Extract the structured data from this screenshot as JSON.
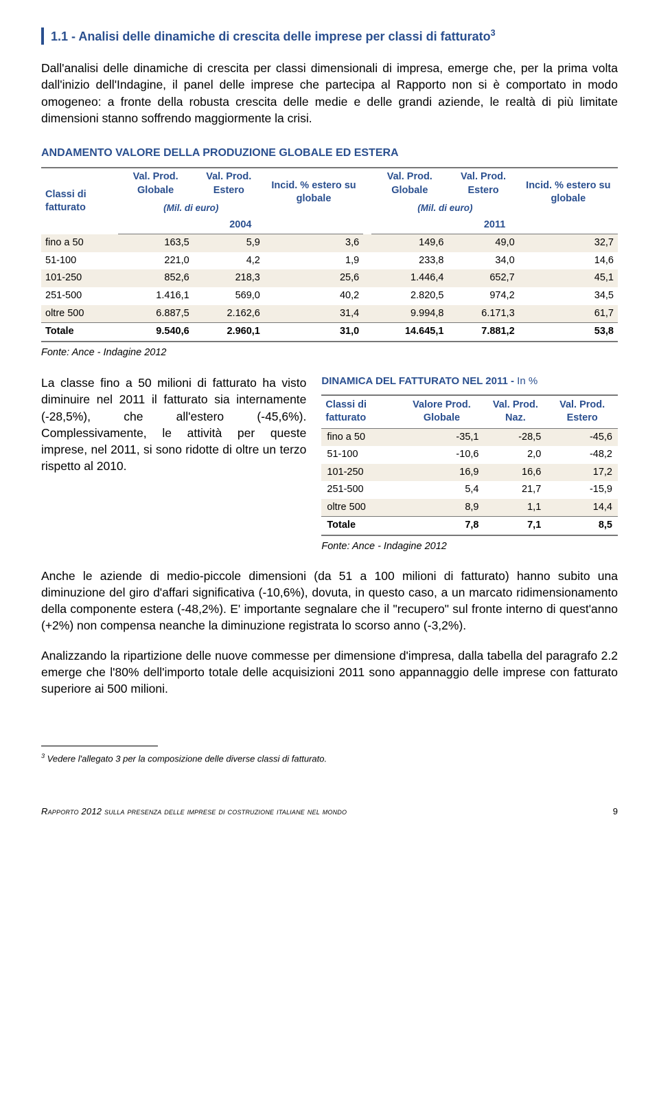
{
  "heading": "1.1 - Analisi delle dinamiche di crescita delle imprese per classi di fatturato",
  "heading_sup": "3",
  "para1": "Dall'analisi delle dinamiche di crescita per classi dimensionali di impresa, emerge che, per la prima volta dall'inizio dell'Indagine, il panel delle imprese che partecipa al Rapporto non si è comportato in modo omogeneo: a fronte della robusta crescita delle medie e delle grandi aziende, le realtà di più limitate dimensioni stanno soffrendo maggiormente la crisi.",
  "table1": {
    "title": "ANDAMENTO VALORE DELLA PRODUZIONE GLOBALE ED ESTERA",
    "row_header": "Classi di fatturato",
    "col_headers": {
      "globale": "Val. Prod. Globale",
      "estero": "Val. Prod. Estero",
      "incid": "Incid. % estero su globale",
      "mil": "(Mil. di euro)",
      "y2004": "2004",
      "y2011": "2011"
    },
    "rows": [
      {
        "label": "fino a 50",
        "a": "163,5",
        "b": "5,9",
        "c": "3,6",
        "d": "149,6",
        "e": "49,0",
        "f": "32,7"
      },
      {
        "label": "51-100",
        "a": "221,0",
        "b": "4,2",
        "c": "1,9",
        "d": "233,8",
        "e": "34,0",
        "f": "14,6"
      },
      {
        "label": "101-250",
        "a": "852,6",
        "b": "218,3",
        "c": "25,6",
        "d": "1.446,4",
        "e": "652,7",
        "f": "45,1"
      },
      {
        "label": "251-500",
        "a": "1.416,1",
        "b": "569,0",
        "c": "40,2",
        "d": "2.820,5",
        "e": "974,2",
        "f": "34,5"
      },
      {
        "label": "oltre 500",
        "a": "6.887,5",
        "b": "2.162,6",
        "c": "31,4",
        "d": "9.994,8",
        "e": "6.171,3",
        "f": "61,7"
      }
    ],
    "total": {
      "label": "Totale",
      "a": "9.540,6",
      "b": "2.960,1",
      "c": "31,0",
      "d": "14.645,1",
      "e": "7.881,2",
      "f": "53,8"
    },
    "source": "Fonte: Ance - Indagine 2012"
  },
  "para2": "La classe fino a 50 milioni di fatturato ha visto diminuire nel 2011 il fatturato sia internamente (-28,5%), che all'estero (-45,6%). Complessivamente, le attività per queste imprese, nel 2011, si sono ridotte di oltre un terzo rispetto al 2010.",
  "table2": {
    "title": "DINAMICA DEL FATTURATO NEL 2011 - ",
    "title_suffix": "In %",
    "row_header": "Classi di fatturato",
    "col_headers": {
      "globale": "Valore Prod. Globale",
      "naz": "Val. Prod. Naz.",
      "estero": "Val. Prod. Estero"
    },
    "rows": [
      {
        "label": "fino a 50",
        "a": "-35,1",
        "b": "-28,5",
        "c": "-45,6"
      },
      {
        "label": "51-100",
        "a": "-10,6",
        "b": "2,0",
        "c": "-48,2"
      },
      {
        "label": "101-250",
        "a": "16,9",
        "b": "16,6",
        "c": "17,2"
      },
      {
        "label": "251-500",
        "a": "5,4",
        "b": "21,7",
        "c": "-15,9"
      },
      {
        "label": "oltre 500",
        "a": "8,9",
        "b": "1,1",
        "c": "14,4"
      }
    ],
    "total": {
      "label": "Totale",
      "a": "7,8",
      "b": "7,1",
      "c": "8,5"
    },
    "source": "Fonte: Ance - Indagine 2012"
  },
  "para3": "Anche le aziende di medio-piccole dimensioni (da 51 a 100 milioni di fatturato) hanno subito una diminuzione del giro d'affari significativa (-10,6%), dovuta, in questo caso, a un marcato ridimensionamento della componente estera (-48,2%). E' importante segnalare che il \"recupero\" sul fronte interno di quest'anno (+2%) non compensa neanche la diminuzione registrata lo scorso anno (-3,2%).",
  "para4": "Analizzando la ripartizione delle nuove commesse per dimensione d'impresa, dalla tabella del paragrafo 2.2 emerge che l'80% dell'importo totale delle acquisizioni 2011 sono appannaggio delle imprese con fatturato superiore ai 500 milioni.",
  "footnote_num": "3",
  "footnote": " Vedere l'allegato 3 per la composizione delle diverse classi di fatturato.",
  "footer_left": "Rapporto 2012 sulla presenza delle imprese di costruzione italiane nel mondo",
  "footer_page": "9",
  "colors": {
    "accent": "#2a4f8f",
    "row_odd": "#f3eee4",
    "border": "#777777"
  }
}
